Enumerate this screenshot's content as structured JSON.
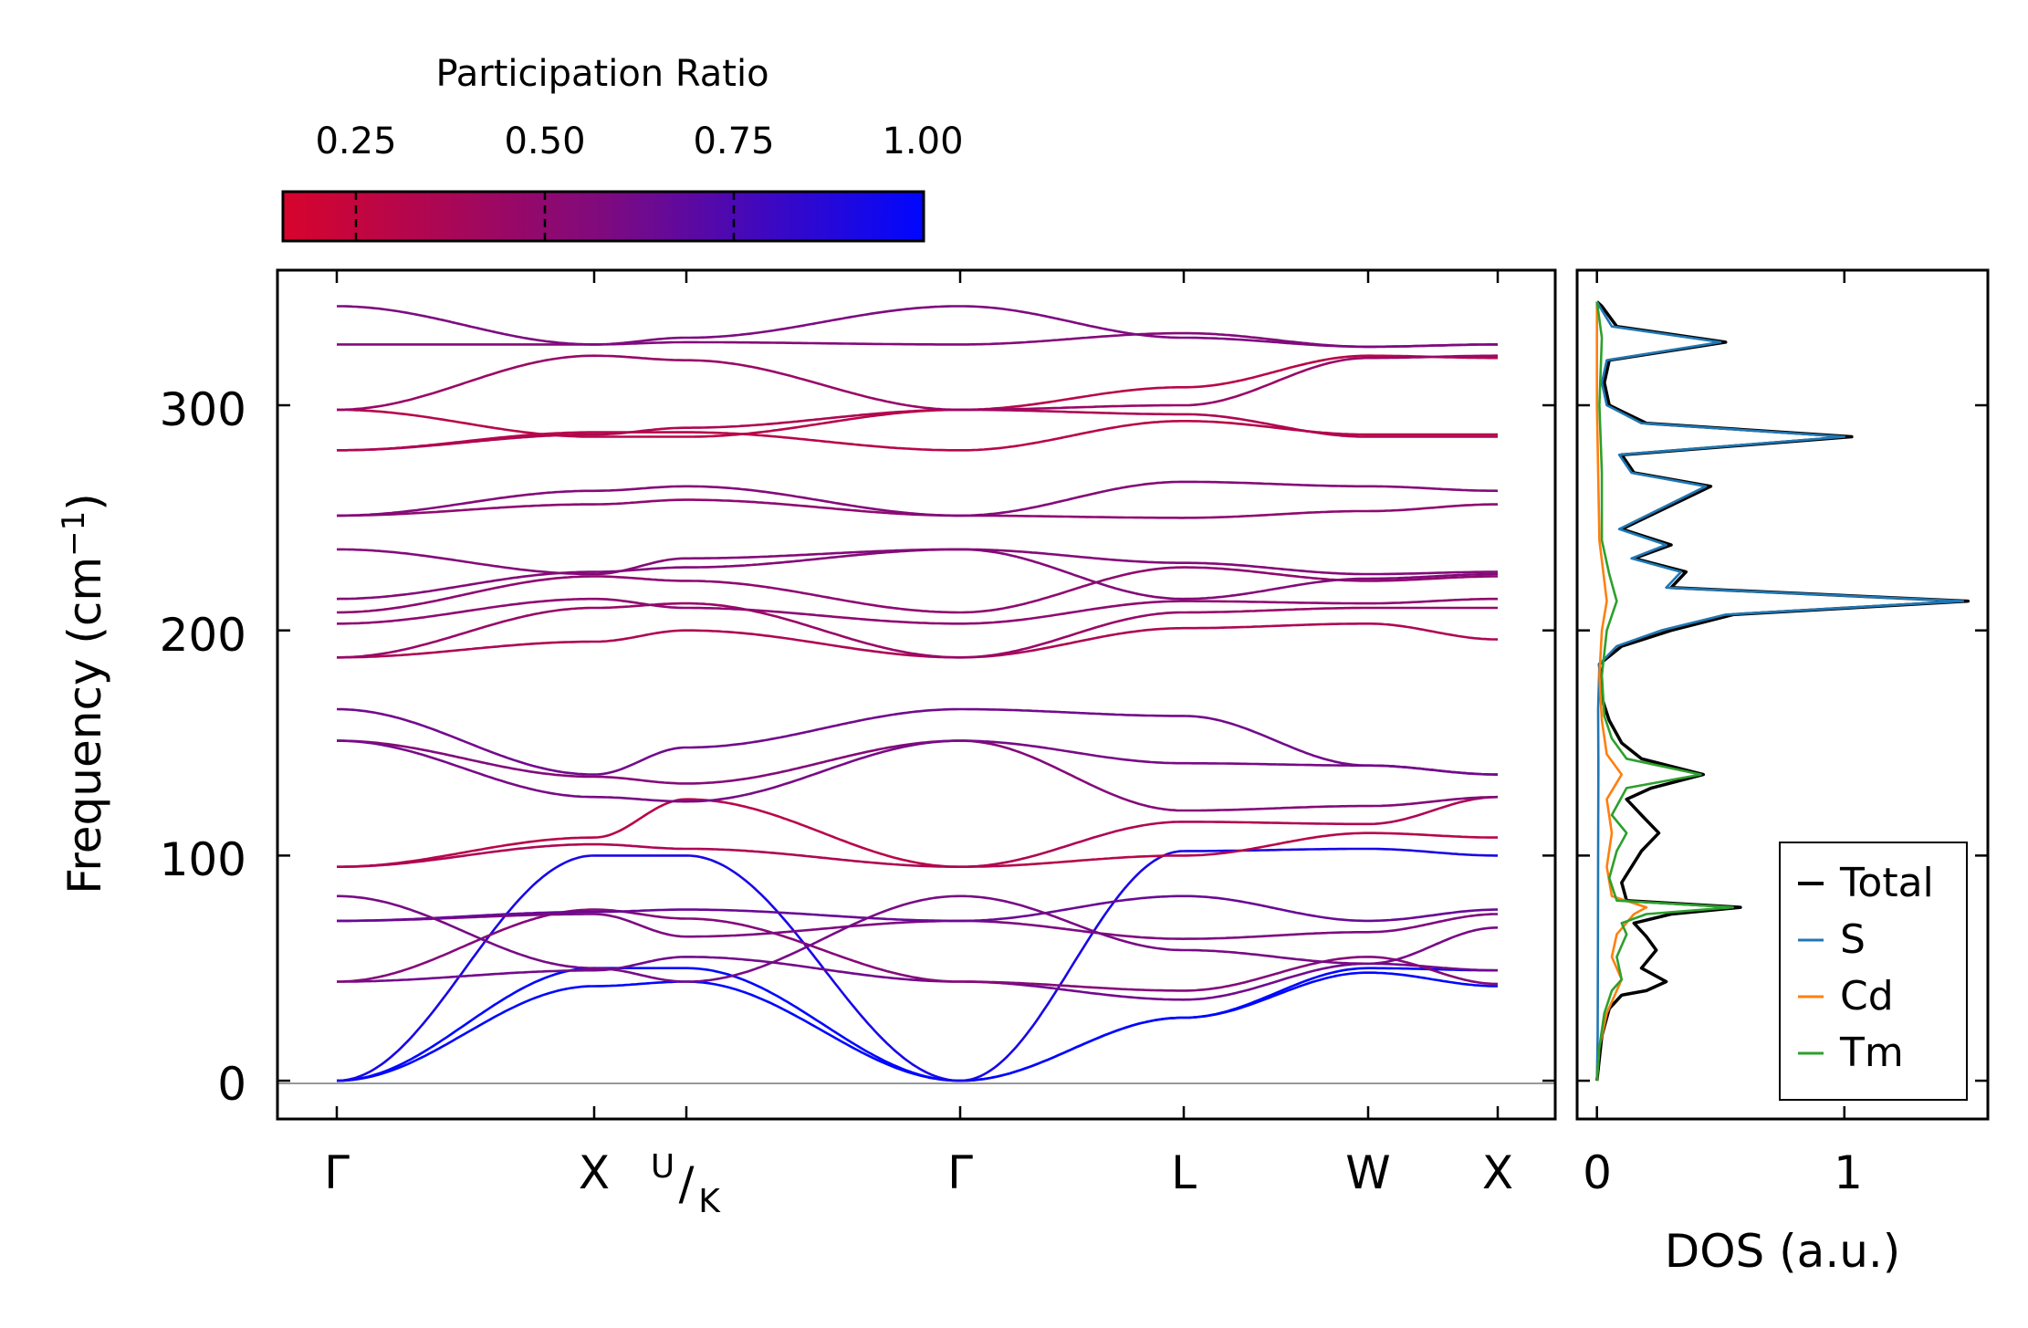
{
  "chart_data": [
    {
      "type": "line",
      "subtype": "phonon-band-structure",
      "ylabel": "Frequency",
      "ylabel_unit_base": "cm",
      "ylabel_unit_exp": "−1",
      "ylim": [
        -17,
        360
      ],
      "yticks": [
        0,
        100,
        200,
        300
      ],
      "path_positions": [
        0,
        1,
        1.36,
        2.42,
        3.29,
        4.0,
        4.5
      ],
      "high_symmetry_labels": [
        "Γ",
        "X",
        "U",
        "K",
        "Γ",
        "L",
        "W",
        "X"
      ],
      "color_scale": {
        "title": "Participation Ratio",
        "min": 0.15,
        "max": 1.0,
        "ticks": [
          "0.25",
          "0.50",
          "0.75",
          "1.00"
        ],
        "low_color": "#d7042c",
        "mid_color": "#7f0a7e",
        "high_color": "#0007ff"
      },
      "branches": [
        {
          "p": [
            0,
            1,
            1.36,
            2.42,
            3.29,
            4,
            4.5
          ],
          "f": [
            0,
            42,
            44,
            0,
            28,
            48,
            42
          ],
          "pr": 1.0
        },
        {
          "p": [
            0,
            1,
            1.36,
            2.42,
            3.29,
            4,
            4.5
          ],
          "f": [
            0,
            50,
            50,
            0,
            28,
            50,
            49
          ],
          "pr": 1.0
        },
        {
          "p": [
            0,
            1,
            1.36,
            2.42,
            3.29,
            4,
            4.5
          ],
          "f": [
            0,
            100,
            100,
            0,
            102,
            103,
            100
          ],
          "pr": 0.92
        },
        {
          "p": [
            0,
            1,
            1.36,
            2.42,
            3.29,
            4,
            4.5
          ],
          "f": [
            44,
            49,
            55,
            44,
            36,
            52,
            49
          ],
          "pr": 0.62
        },
        {
          "p": [
            0,
            1,
            1.36,
            2.42,
            3.29,
            4,
            4.5
          ],
          "f": [
            44,
            76,
            72,
            44,
            40,
            55,
            43
          ],
          "pr": 0.55
        },
        {
          "p": [
            0,
            1,
            1.36,
            2.42,
            3.29,
            4,
            4.5
          ],
          "f": [
            71,
            74,
            64,
            71,
            63,
            66,
            74
          ],
          "pr": 0.58
        },
        {
          "p": [
            0,
            1,
            1.36,
            2.42,
            3.29,
            4,
            4.5
          ],
          "f": [
            71,
            75,
            76,
            71,
            82,
            71,
            76
          ],
          "pr": 0.65
        },
        {
          "p": [
            0,
            1,
            1.36,
            2.42,
            3.29,
            4,
            4.5
          ],
          "f": [
            82,
            50,
            44,
            82,
            58,
            52,
            68
          ],
          "pr": 0.6
        },
        {
          "p": [
            0,
            1,
            1.36,
            2.42,
            3.29,
            4,
            4.5
          ],
          "f": [
            95,
            108,
            125,
            95,
            100,
            110,
            108
          ],
          "pr": 0.3
        },
        {
          "p": [
            0,
            1,
            1.36,
            2.42,
            3.29,
            4,
            4.5
          ],
          "f": [
            95,
            105,
            103,
            95,
            115,
            114,
            126
          ],
          "pr": 0.35
        },
        {
          "p": [
            0,
            1,
            1.36,
            2.42,
            3.29,
            4,
            4.5
          ],
          "f": [
            151,
            135,
            132,
            151,
            120,
            122,
            126
          ],
          "pr": 0.55
        },
        {
          "p": [
            0,
            1,
            1.36,
            2.42,
            3.29,
            4,
            4.5
          ],
          "f": [
            151,
            126,
            124,
            151,
            141,
            140,
            136
          ],
          "pr": 0.6
        },
        {
          "p": [
            0,
            1,
            1.36,
            2.42,
            3.29,
            4,
            4.5
          ],
          "f": [
            165,
            136,
            148,
            165,
            162,
            140,
            136
          ],
          "pr": 0.62
        },
        {
          "p": [
            0,
            1,
            1.36,
            2.42,
            3.29,
            4,
            4.5
          ],
          "f": [
            188,
            195,
            200,
            188,
            201,
            203,
            196
          ],
          "pr": 0.35
        },
        {
          "p": [
            0,
            1,
            1.36,
            2.42,
            3.29,
            4,
            4.5
          ],
          "f": [
            188,
            210,
            212,
            188,
            208,
            210,
            210
          ],
          "pr": 0.45
        },
        {
          "p": [
            0,
            1,
            1.36,
            2.42,
            3.29,
            4,
            4.5
          ],
          "f": [
            203,
            214,
            210,
            203,
            213,
            212,
            214
          ],
          "pr": 0.5
        },
        {
          "p": [
            0,
            1,
            1.36,
            2.42,
            3.29,
            4,
            4.5
          ],
          "f": [
            208,
            224,
            222,
            208,
            228,
            222,
            224
          ],
          "pr": 0.5
        },
        {
          "p": [
            0,
            1,
            1.36,
            2.42,
            3.29,
            4,
            4.5
          ],
          "f": [
            214,
            226,
            228,
            236,
            230,
            225,
            226
          ],
          "pr": 0.55
        },
        {
          "p": [
            0,
            1,
            1.36,
            2.42,
            3.29,
            4,
            4.5
          ],
          "f": [
            236,
            225,
            232,
            236,
            214,
            223,
            225
          ],
          "pr": 0.55
        },
        {
          "p": [
            0,
            1,
            1.36,
            2.42,
            3.29,
            4,
            4.5
          ],
          "f": [
            251,
            256,
            258,
            251,
            250,
            253,
            256
          ],
          "pr": 0.5
        },
        {
          "p": [
            0,
            1,
            1.36,
            2.42,
            3.29,
            4,
            4.5
          ],
          "f": [
            251,
            262,
            264,
            251,
            266,
            264,
            262
          ],
          "pr": 0.55
        },
        {
          "p": [
            0,
            1,
            1.36,
            2.42,
            3.29,
            4,
            4.5
          ],
          "f": [
            280,
            288,
            288,
            280,
            293,
            287,
            287
          ],
          "pr": 0.3
        },
        {
          "p": [
            0,
            1,
            1.36,
            2.42,
            3.29,
            4,
            4.5
          ],
          "f": [
            280,
            287,
            290,
            298,
            296,
            286,
            286
          ],
          "pr": 0.35
        },
        {
          "p": [
            0,
            1,
            1.36,
            2.42,
            3.29,
            4,
            4.5
          ],
          "f": [
            298,
            286,
            286,
            298,
            308,
            322,
            321
          ],
          "pr": 0.3
        },
        {
          "p": [
            0,
            1,
            1.36,
            2.42,
            3.29,
            4,
            4.5
          ],
          "f": [
            298,
            322,
            320,
            298,
            300,
            321,
            322
          ],
          "pr": 0.45
        },
        {
          "p": [
            0,
            1,
            1.36,
            2.42,
            3.29,
            4,
            4.5
          ],
          "f": [
            327,
            327,
            328,
            327,
            332,
            326,
            327
          ],
          "pr": 0.55
        },
        {
          "p": [
            0,
            1,
            1.36,
            2.42,
            3.29,
            4,
            4.5
          ],
          "f": [
            344,
            327,
            330,
            344,
            330,
            326,
            327
          ],
          "pr": 0.58
        }
      ]
    },
    {
      "type": "line",
      "subtype": "density-of-states",
      "xlabel": "DOS (a.u.)",
      "xlim": [
        -0.08,
        1.58
      ],
      "xticks": [
        0,
        1
      ],
      "legend_position": "lower-right",
      "series": [
        {
          "name": "Total",
          "color": "#000000",
          "points": [
            [
              0,
              0
            ],
            [
              0.01,
              10
            ],
            [
              0.02,
              20
            ],
            [
              0.05,
              32
            ],
            [
              0.1,
              38
            ],
            [
              0.2,
              40
            ],
            [
              0.28,
              44
            ],
            [
              0.18,
              50
            ],
            [
              0.24,
              58
            ],
            [
              0.2,
              64
            ],
            [
              0.15,
              70
            ],
            [
              0.3,
              74
            ],
            [
              0.58,
              77
            ],
            [
              0.12,
              80
            ],
            [
              0.1,
              88
            ],
            [
              0.18,
              102
            ],
            [
              0.25,
              110
            ],
            [
              0.18,
              118
            ],
            [
              0.12,
              125
            ],
            [
              0.22,
              130
            ],
            [
              0.43,
              136
            ],
            [
              0.18,
              143
            ],
            [
              0.1,
              150
            ],
            [
              0.05,
              160
            ],
            [
              0.02,
              170
            ],
            [
              0.01,
              185
            ],
            [
              0.1,
              193
            ],
            [
              0.3,
              200
            ],
            [
              0.55,
              207
            ],
            [
              1.5,
              213
            ],
            [
              0.3,
              219
            ],
            [
              0.36,
              226
            ],
            [
              0.15,
              232
            ],
            [
              0.3,
              238
            ],
            [
              0.1,
              245
            ],
            [
              0.46,
              264
            ],
            [
              0.15,
              270
            ],
            [
              0.1,
              278
            ],
            [
              1.03,
              286
            ],
            [
              0.2,
              292
            ],
            [
              0.05,
              300
            ],
            [
              0.03,
              310
            ],
            [
              0.05,
              320
            ],
            [
              0.52,
              328
            ],
            [
              0.08,
              335
            ],
            [
              0.02,
              344
            ],
            [
              0,
              346
            ]
          ]
        },
        {
          "name": "S",
          "color": "#1f77b4",
          "points": [
            [
              0,
              0
            ],
            [
              0.003,
              20
            ],
            [
              0.004,
              60
            ],
            [
              0.005,
              100
            ],
            [
              0.006,
              140
            ],
            [
              0.005,
              165
            ],
            [
              0.01,
              185
            ],
            [
              0.08,
              193
            ],
            [
              0.26,
              200
            ],
            [
              0.52,
              207
            ],
            [
              1.48,
              213
            ],
            [
              0.28,
              219
            ],
            [
              0.34,
              226
            ],
            [
              0.14,
              232
            ],
            [
              0.28,
              238
            ],
            [
              0.09,
              245
            ],
            [
              0.44,
              264
            ],
            [
              0.14,
              270
            ],
            [
              0.09,
              278
            ],
            [
              1.0,
              286
            ],
            [
              0.18,
              292
            ],
            [
              0.04,
              300
            ],
            [
              0.02,
              310
            ],
            [
              0.04,
              320
            ],
            [
              0.5,
              328
            ],
            [
              0.06,
              335
            ],
            [
              0.01,
              344
            ],
            [
              0,
              346
            ]
          ]
        },
        {
          "name": "Cd",
          "color": "#ff7f0e",
          "points": [
            [
              0,
              0
            ],
            [
              0.01,
              15
            ],
            [
              0.04,
              30
            ],
            [
              0.08,
              40
            ],
            [
              0.1,
              45
            ],
            [
              0.06,
              55
            ],
            [
              0.08,
              65
            ],
            [
              0.15,
              74
            ],
            [
              0.2,
              77
            ],
            [
              0.06,
              82
            ],
            [
              0.04,
              95
            ],
            [
              0.06,
              110
            ],
            [
              0.04,
              125
            ],
            [
              0.1,
              136
            ],
            [
              0.04,
              145
            ],
            [
              0.02,
              160
            ],
            [
              0.01,
              180
            ],
            [
              0.02,
              200
            ],
            [
              0.04,
              213
            ],
            [
              0.01,
              240
            ],
            [
              0,
              300
            ],
            [
              0,
              346
            ]
          ]
        },
        {
          "name": "Tm",
          "color": "#2ca02c",
          "points": [
            [
              0,
              0
            ],
            [
              0.01,
              15
            ],
            [
              0.03,
              30
            ],
            [
              0.06,
              40
            ],
            [
              0.1,
              45
            ],
            [
              0.08,
              55
            ],
            [
              0.12,
              65
            ],
            [
              0.1,
              70
            ],
            [
              0.2,
              74
            ],
            [
              0.55,
              77
            ],
            [
              0.08,
              80
            ],
            [
              0.05,
              90
            ],
            [
              0.08,
              102
            ],
            [
              0.12,
              110
            ],
            [
              0.06,
              118
            ],
            [
              0.12,
              130
            ],
            [
              0.42,
              136
            ],
            [
              0.12,
              143
            ],
            [
              0.06,
              152
            ],
            [
              0.03,
              162
            ],
            [
              0.02,
              180
            ],
            [
              0.04,
              200
            ],
            [
              0.08,
              213
            ],
            [
              0.05,
              225
            ],
            [
              0.02,
              240
            ],
            [
              0.02,
              270
            ],
            [
              0.01,
              300
            ],
            [
              0.02,
              330
            ],
            [
              0,
              346
            ]
          ]
        }
      ]
    }
  ]
}
